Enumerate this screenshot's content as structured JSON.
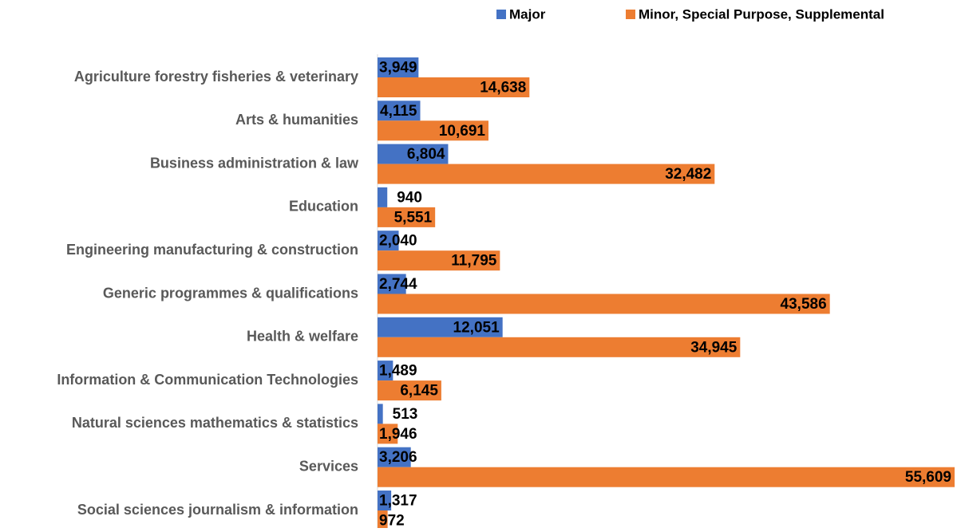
{
  "chart_data": {
    "type": "bar",
    "orientation": "horizontal",
    "categories": [
      "Agriculture forestry fisheries & veterinary",
      "Arts & humanities",
      "Business administration & law",
      "Education",
      "Engineering manufacturing & construction",
      "Generic programmes & qualifications",
      "Health & welfare",
      "Information & Communication Technologies",
      "Natural sciences mathematics & statistics",
      "Services",
      "Social sciences journalism & information"
    ],
    "series": [
      {
        "name": "Major",
        "color": "#4472c4",
        "values": [
          3949,
          4115,
          6804,
          940,
          2040,
          2744,
          12051,
          1489,
          513,
          3206,
          1317
        ],
        "value_labels": [
          "3,949",
          "4,115",
          "6,804",
          "940",
          "2,040",
          "2,744",
          "12,051",
          "1,489",
          "513",
          "3,206",
          "1,317"
        ]
      },
      {
        "name": "Minor, Special Purpose, Supplemental",
        "color": "#ed7d31",
        "values": [
          14638,
          10691,
          32482,
          5551,
          11795,
          43586,
          34945,
          6145,
          1946,
          55609,
          972
        ],
        "value_labels": [
          "14,638",
          "10,691",
          "32,482",
          "5,551",
          "11,795",
          "43,586",
          "34,945",
          "6,145",
          "1,946",
          "55,609",
          "972"
        ]
      }
    ],
    "legend": "top"
  }
}
